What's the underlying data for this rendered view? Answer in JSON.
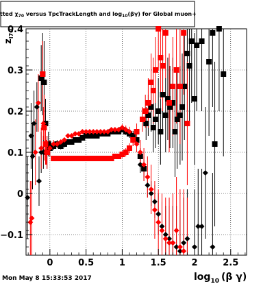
{
  "chart_data": {
    "type": "scatter",
    "title": "itted  z_{70} versus TpcTrackLength and log_{10}(βγ) for Global muon+",
    "title_prefix": "itted ",
    "title_sym": "χ",
    "title_sub": "70",
    "title_mid": " versus TpcTrackLength and log",
    "title_sub2": "10",
    "title_end": "(βγ) for Global muon+",
    "ylabel_main": "z",
    "ylabel_sub": "I70",
    "xlabel_main": "log",
    "xlabel_sub": "10",
    "xlabel_end": "(β γ)",
    "footer": "Mon May  8 15:33:53 2017",
    "xlim": [
      -0.33,
      2.72
    ],
    "ylim": [
      -0.15,
      0.4
    ],
    "x_ticks": [
      0,
      0.5,
      1,
      1.5,
      2,
      2.5
    ],
    "x_tick_labels": [
      "0",
      "0.5",
      "1",
      "1.5",
      "2",
      "2.5"
    ],
    "y_ticks": [
      -0.1,
      0,
      0.1,
      0.2,
      0.3,
      0.4
    ],
    "y_tick_labels": [
      "−0.1",
      "0",
      "0.1",
      "0.2",
      "0.3",
      "0.4"
    ],
    "grid": true,
    "series": [
      {
        "marker": "square",
        "color": "#000000",
        "points": [
          [
            -0.12,
            0.28,
            0.08
          ],
          [
            -0.1,
            0.29,
            0.1
          ],
          [
            -0.08,
            0.27,
            0.1
          ],
          [
            -0.06,
            0.17,
            0.06
          ],
          [
            -0.04,
            0.1,
            0.04
          ],
          [
            -0.02,
            0.12,
            0.03
          ],
          [
            0.0,
            0.11,
            0.02
          ],
          [
            0.05,
            0.115,
            0.01
          ],
          [
            0.1,
            0.12,
            0.01
          ],
          [
            0.15,
            0.115,
            0.008
          ],
          [
            0.2,
            0.12,
            0.008
          ],
          [
            0.25,
            0.125,
            0.006
          ],
          [
            0.3,
            0.125,
            0.006
          ],
          [
            0.35,
            0.13,
            0.006
          ],
          [
            0.4,
            0.13,
            0.005
          ],
          [
            0.45,
            0.135,
            0.005
          ],
          [
            0.5,
            0.14,
            0.005
          ],
          [
            0.55,
            0.14,
            0.005
          ],
          [
            0.6,
            0.14,
            0.005
          ],
          [
            0.65,
            0.14,
            0.005
          ],
          [
            0.7,
            0.145,
            0.005
          ],
          [
            0.75,
            0.145,
            0.005
          ],
          [
            0.8,
            0.145,
            0.005
          ],
          [
            0.85,
            0.15,
            0.005
          ],
          [
            0.9,
            0.15,
            0.005
          ],
          [
            0.95,
            0.15,
            0.005
          ],
          [
            1.0,
            0.155,
            0.006
          ],
          [
            1.05,
            0.15,
            0.008
          ],
          [
            1.1,
            0.145,
            0.01
          ],
          [
            1.15,
            0.14,
            0.012
          ],
          [
            1.2,
            0.13,
            0.015
          ],
          [
            1.25,
            0.09,
            0.02
          ],
          [
            1.3,
            0.06,
            0.03
          ],
          [
            1.33,
            0.17,
            0.04
          ],
          [
            1.36,
            0.19,
            0.05
          ],
          [
            1.4,
            0.21,
            0.06
          ],
          [
            1.43,
            0.16,
            0.06
          ],
          [
            1.46,
            0.18,
            0.07
          ],
          [
            1.5,
            0.2,
            0.08
          ],
          [
            1.53,
            0.15,
            0.08
          ],
          [
            1.56,
            0.24,
            0.09
          ],
          [
            1.6,
            0.19,
            0.09
          ],
          [
            1.63,
            0.23,
            0.1
          ],
          [
            1.66,
            0.21,
            0.1
          ],
          [
            1.7,
            0.22,
            0.11
          ],
          [
            1.73,
            0.15,
            0.11
          ],
          [
            1.76,
            0.18,
            0.12
          ],
          [
            1.8,
            0.19,
            0.12
          ],
          [
            1.83,
            0.21,
            0.13
          ],
          [
            1.86,
            0.26,
            0.13
          ],
          [
            1.9,
            0.34,
            0.14
          ],
          [
            1.93,
            0.31,
            0.14
          ],
          [
            1.96,
            0.37,
            0.15
          ],
          [
            2.0,
            0.23,
            0.16
          ],
          [
            2.03,
            0.36,
            0.16
          ],
          [
            2.1,
            0.37,
            0.17
          ],
          [
            2.2,
            0.32,
            0.18
          ],
          [
            2.25,
            0.39,
            0.18
          ],
          [
            2.28,
            0.12,
            0.2
          ],
          [
            2.34,
            0.4,
            0.2
          ],
          [
            2.4,
            0.29,
            0.2
          ]
        ]
      },
      {
        "marker": "diamond",
        "color": "#000000",
        "points": [
          [
            -0.31,
            -0.01,
            0.1
          ],
          [
            -0.26,
            0.14,
            0.08
          ],
          [
            -0.24,
            0.09,
            0.08
          ],
          [
            -0.22,
            0.17,
            0.08
          ],
          [
            -0.18,
            0.21,
            0.06
          ],
          [
            -0.15,
            0.03,
            0.06
          ],
          [
            -0.12,
            0.1,
            0.05
          ],
          [
            -0.09,
            0.1,
            0.04
          ],
          [
            1.25,
            0.07,
            0.02
          ],
          [
            1.3,
            0.06,
            0.02
          ],
          [
            1.35,
            0.02,
            0.03
          ],
          [
            1.4,
            0.0,
            0.03
          ],
          [
            1.45,
            -0.02,
            0.04
          ],
          [
            1.5,
            -0.05,
            0.05
          ],
          [
            1.55,
            -0.08,
            0.06
          ],
          [
            1.6,
            -0.1,
            0.07
          ],
          [
            1.65,
            -0.11,
            0.08
          ],
          [
            1.7,
            -0.12,
            0.09
          ],
          [
            1.75,
            -0.13,
            0.1
          ],
          [
            1.8,
            -0.14,
            0.1
          ],
          [
            1.85,
            -0.12,
            0.11
          ],
          [
            1.9,
            -0.11,
            0.12
          ],
          [
            2.0,
            -0.13,
            0.14
          ],
          [
            2.05,
            -0.08,
            0.14
          ],
          [
            2.1,
            -0.08,
            0.14
          ],
          [
            2.15,
            0.05,
            0.16
          ],
          [
            2.25,
            -0.13,
            0.18
          ]
        ]
      },
      {
        "marker": "square",
        "color": "#ff0000",
        "points": [
          [
            -0.1,
            0.29,
            0.08
          ],
          [
            -0.08,
            0.16,
            0.08
          ],
          [
            -0.06,
            0.12,
            0.05
          ],
          [
            -0.04,
            0.1,
            0.04
          ],
          [
            0.05,
            0.085,
            0.006
          ],
          [
            0.1,
            0.085,
            0.006
          ],
          [
            0.15,
            0.085,
            0.005
          ],
          [
            0.2,
            0.085,
            0.005
          ],
          [
            0.25,
            0.085,
            0.005
          ],
          [
            0.3,
            0.085,
            0.005
          ],
          [
            0.35,
            0.085,
            0.005
          ],
          [
            0.4,
            0.085,
            0.005
          ],
          [
            0.45,
            0.085,
            0.005
          ],
          [
            0.5,
            0.085,
            0.005
          ],
          [
            0.55,
            0.085,
            0.005
          ],
          [
            0.6,
            0.085,
            0.005
          ],
          [
            0.65,
            0.085,
            0.005
          ],
          [
            0.7,
            0.085,
            0.005
          ],
          [
            0.75,
            0.085,
            0.005
          ],
          [
            0.8,
            0.085,
            0.005
          ],
          [
            0.85,
            0.085,
            0.005
          ],
          [
            0.9,
            0.09,
            0.006
          ],
          [
            0.95,
            0.09,
            0.006
          ],
          [
            1.0,
            0.095,
            0.008
          ],
          [
            1.05,
            0.1,
            0.01
          ],
          [
            1.1,
            0.11,
            0.012
          ],
          [
            1.15,
            0.13,
            0.015
          ],
          [
            1.2,
            0.15,
            0.02
          ],
          [
            1.28,
            0.18,
            0.03
          ],
          [
            1.32,
            0.2,
            0.04
          ],
          [
            1.36,
            0.22,
            0.06
          ],
          [
            1.4,
            0.27,
            0.07
          ],
          [
            1.43,
            0.25,
            0.08
          ],
          [
            1.46,
            0.3,
            0.08
          ],
          [
            1.5,
            0.4,
            0.1
          ],
          [
            1.53,
            0.33,
            0.1
          ],
          [
            1.56,
            0.31,
            0.11
          ],
          [
            1.6,
            0.39,
            0.11
          ],
          [
            1.65,
            0.22,
            0.12
          ],
          [
            1.7,
            0.26,
            0.12
          ],
          [
            1.75,
            0.3,
            0.13
          ],
          [
            1.8,
            0.26,
            0.14
          ],
          [
            1.85,
            0.39,
            0.15
          ],
          [
            1.9,
            0.17,
            0.15
          ]
        ]
      },
      {
        "marker": "diamond",
        "color": "#ff0000",
        "points": [
          [
            -0.27,
            -0.07,
            0.1
          ],
          [
            -0.25,
            -0.06,
            0.09
          ],
          [
            -0.2,
            0.1,
            0.08
          ],
          [
            -0.16,
            0.22,
            0.07
          ],
          [
            -0.12,
            0.11,
            0.05
          ],
          [
            -0.09,
            0.17,
            0.04
          ],
          [
            -0.05,
            0.1,
            0.03
          ],
          [
            0.0,
            0.11,
            0.02
          ],
          [
            0.05,
            0.12,
            0.01
          ],
          [
            0.1,
            0.12,
            0.008
          ],
          [
            0.15,
            0.125,
            0.006
          ],
          [
            0.2,
            0.13,
            0.006
          ],
          [
            0.25,
            0.14,
            0.005
          ],
          [
            0.3,
            0.14,
            0.005
          ],
          [
            0.35,
            0.145,
            0.005
          ],
          [
            0.4,
            0.145,
            0.005
          ],
          [
            0.45,
            0.15,
            0.005
          ],
          [
            0.5,
            0.15,
            0.005
          ],
          [
            0.55,
            0.15,
            0.005
          ],
          [
            0.6,
            0.15,
            0.005
          ],
          [
            0.65,
            0.15,
            0.005
          ],
          [
            0.7,
            0.15,
            0.005
          ],
          [
            0.75,
            0.15,
            0.005
          ],
          [
            0.8,
            0.15,
            0.005
          ],
          [
            0.85,
            0.155,
            0.005
          ],
          [
            0.9,
            0.155,
            0.006
          ],
          [
            0.95,
            0.155,
            0.006
          ],
          [
            1.0,
            0.16,
            0.008
          ],
          [
            1.05,
            0.155,
            0.01
          ],
          [
            1.1,
            0.15,
            0.012
          ],
          [
            1.15,
            0.13,
            0.015
          ],
          [
            1.2,
            0.12,
            0.02
          ],
          [
            1.25,
            0.1,
            0.03
          ],
          [
            1.3,
            0.07,
            0.04
          ],
          [
            1.35,
            0.04,
            0.05
          ],
          [
            1.4,
            0.01,
            0.06
          ],
          [
            1.45,
            -0.04,
            0.07
          ],
          [
            1.5,
            -0.07,
            0.08
          ],
          [
            1.55,
            -0.09,
            0.09
          ],
          [
            1.6,
            -0.11,
            0.1
          ],
          [
            1.65,
            -0.12,
            0.11
          ],
          [
            1.7,
            -0.12,
            0.12
          ],
          [
            1.75,
            -0.09,
            0.13
          ],
          [
            1.8,
            -0.13,
            0.14
          ],
          [
            1.85,
            -0.14,
            0.15
          ],
          [
            1.9,
            -0.16,
            0.15
          ]
        ]
      }
    ]
  }
}
